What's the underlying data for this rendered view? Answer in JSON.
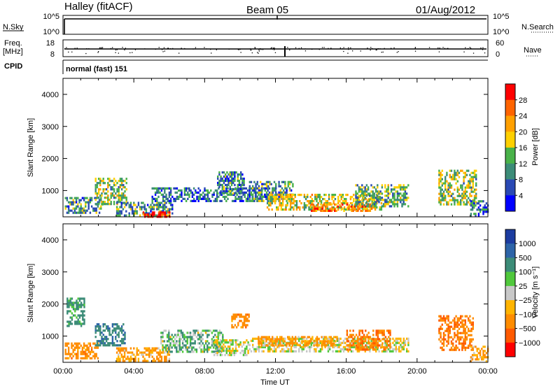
{
  "header": {
    "station": "Halley (fitACF)",
    "beam": "Beam 05",
    "date": "01/Aug/2012"
  },
  "params": {
    "nsky_label": "N.Sky",
    "nsky_ticks": [
      "10^5",
      "10^0"
    ],
    "nsearch_label": "N.Search",
    "nsearch_ticks": [
      "10^5",
      "10^0"
    ],
    "freq_label": "Freq.",
    "freq_unit": "[MHz]",
    "freq_ticks": [
      "18",
      "8"
    ],
    "nave_label": "Nave",
    "nave_ticks": [
      "60",
      "0"
    ],
    "cpid_label": "CPID",
    "cpid_text": "normal (fast) 151"
  },
  "colors": {
    "power": [
      "#0000ff",
      "#2a49b4",
      "#3c8c78",
      "#49b249",
      "#ffd000",
      "#ffa000",
      "#ff6400",
      "#ff0000"
    ],
    "velocity": [
      "#1c3ca0",
      "#2d64a8",
      "#3c8c78",
      "#50c83c",
      "#c8c8c8",
      "#ffb400",
      "#ff8c00",
      "#ff5a00",
      "#ff0000"
    ],
    "ground_scatter": "#c8c8c8"
  },
  "chart_data": [
    {
      "type": "heatmap",
      "name": "power",
      "ylabel": "Slant Range [km]",
      "xlabel": "Time UT",
      "xlim": [
        "00:00",
        "24:00"
      ],
      "ylim": [
        180,
        4500
      ],
      "xticks": [
        "00:00",
        "04:00",
        "08:00",
        "12:00",
        "16:00",
        "20:00",
        "00:00"
      ],
      "yticks": [
        1000,
        2000,
        3000,
        4000
      ],
      "colorbar": {
        "label": "Power [dB]",
        "ticks": [
          "4",
          "8",
          "12",
          "16",
          "20",
          "24",
          "28"
        ],
        "range": [
          0,
          30
        ]
      },
      "scatter_regions": [
        {
          "t0": 0.1,
          "t1": 2.2,
          "r0": 300,
          "r1": 800,
          "level": 10
        },
        {
          "t0": 1.8,
          "t1": 3.6,
          "r0": 600,
          "r1": 1400,
          "level": 14
        },
        {
          "t0": 3.0,
          "t1": 6.2,
          "r0": 250,
          "r1": 650,
          "level": 10
        },
        {
          "t0": 4.5,
          "t1": 6.0,
          "r0": 200,
          "r1": 350,
          "level": 26
        },
        {
          "t0": 5.0,
          "t1": 12.0,
          "r0": 650,
          "r1": 1100,
          "level": 8
        },
        {
          "t0": 8.7,
          "t1": 10.2,
          "r0": 900,
          "r1": 1600,
          "level": 9
        },
        {
          "t0": 10.5,
          "t1": 13.0,
          "r0": 700,
          "r1": 1300,
          "level": 10
        },
        {
          "t0": 11.5,
          "t1": 18.0,
          "r0": 400,
          "r1": 900,
          "level": 16
        },
        {
          "t0": 14.0,
          "t1": 17.5,
          "r0": 350,
          "r1": 600,
          "level": 22
        },
        {
          "t0": 16.5,
          "t1": 19.5,
          "r0": 500,
          "r1": 1200,
          "level": 12
        },
        {
          "t0": 21.2,
          "t1": 23.3,
          "r0": 600,
          "r1": 1650,
          "level": 14
        },
        {
          "t0": 23.0,
          "t1": 24.0,
          "r0": 200,
          "r1": 700,
          "level": 8
        }
      ]
    },
    {
      "type": "heatmap",
      "name": "velocity",
      "ylabel": "Slant Range [km]",
      "xlabel": "Time UT",
      "xlim": [
        "00:00",
        "24:00"
      ],
      "ylim": [
        180,
        4500
      ],
      "xticks": [
        "00:00",
        "04:00",
        "08:00",
        "12:00",
        "16:00",
        "20:00",
        "00:00"
      ],
      "yticks": [
        1000,
        2000,
        3000,
        4000
      ],
      "colorbar": {
        "label": "Velocity [m s⁻¹]",
        "ticks": [
          "1000",
          "500",
          "100",
          "25",
          "−25",
          "−100",
          "−500",
          "−1000"
        ],
        "range": [
          1000,
          -1000
        ]
      },
      "scatter_regions": [
        {
          "t0": 0.1,
          "t1": 2.0,
          "r0": 300,
          "r1": 800,
          "level": -300
        },
        {
          "t0": 0.2,
          "t1": 1.2,
          "r0": 1300,
          "r1": 2200,
          "level": 200
        },
        {
          "t0": 1.8,
          "t1": 3.5,
          "r0": 700,
          "r1": 1400,
          "level": 400
        },
        {
          "t0": 3.0,
          "t1": 6.0,
          "r0": 250,
          "r1": 650,
          "level": -150
        },
        {
          "t0": 5.5,
          "t1": 9.0,
          "r0": 500,
          "r1": 1200,
          "level": 80
        },
        {
          "t0": 8.5,
          "t1": 10.5,
          "r0": 400,
          "r1": 900,
          "level": 0
        },
        {
          "t0": 9.5,
          "t1": 10.5,
          "r0": 1300,
          "r1": 1700,
          "level": -300
        },
        {
          "t0": 10.5,
          "t1": 19.5,
          "r0": 550,
          "r1": 950,
          "level": 0
        },
        {
          "t0": 11.0,
          "t1": 15.5,
          "r0": 700,
          "r1": 1000,
          "level": -150
        },
        {
          "t0": 16.0,
          "t1": 18.5,
          "r0": 550,
          "r1": 1200,
          "level": -400
        },
        {
          "t0": 21.2,
          "t1": 23.2,
          "r0": 600,
          "r1": 1650,
          "level": -400
        },
        {
          "t0": 23.0,
          "t1": 24.0,
          "r0": 200,
          "r1": 700,
          "level": -100
        }
      ]
    }
  ]
}
